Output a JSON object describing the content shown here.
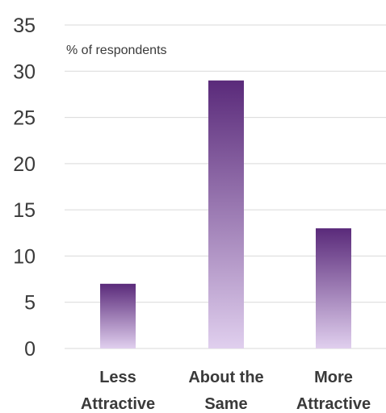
{
  "chart_data": {
    "type": "bar",
    "categories": [
      [
        "Less",
        "Attractive"
      ],
      [
        "About the",
        "Same"
      ],
      [
        "More",
        "Attractive"
      ]
    ],
    "values": [
      7,
      29,
      13
    ],
    "ylabel": "% of respondents",
    "ylim": [
      0,
      35
    ],
    "yticks": [
      0,
      5,
      10,
      15,
      20,
      25,
      30,
      35
    ],
    "grid": true,
    "colors": {
      "bar_top": "#5a2a7a",
      "bar_bottom": "#e0cfee",
      "gridline": "#d9d9d9",
      "text": "#3a3a3a"
    }
  }
}
